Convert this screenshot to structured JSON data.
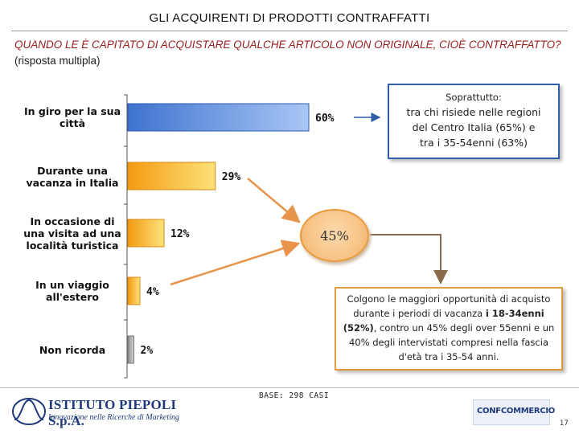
{
  "header": {
    "title": "GLI ACQUIRENTI DI PRODOTTI CONTRAFFATTI",
    "question_main": "QUANDO LE È CAPITATO DI ACQUISTARE QUALCHE ARTICOLO NON ORIGINALE, CIOÈ CONTRAFFATTO?",
    "question_note": " (risposta multipla)"
  },
  "chart_data": {
    "type": "bar",
    "orientation": "horizontal",
    "categories": [
      [
        "In giro per la sua",
        "città"
      ],
      [
        "Durante una",
        "vacanza in Italia"
      ],
      [
        "In occasione di",
        "una visita ad una",
        "località turistica"
      ],
      [
        "In un viaggio",
        "all'estero"
      ],
      [
        "Non ricorda"
      ]
    ],
    "values": [
      60,
      29,
      12,
      4,
      2
    ],
    "value_labels": [
      "60%",
      "29%",
      "12%",
      "4%",
      "2%"
    ],
    "xlim": [
      0,
      100
    ],
    "colors": [
      "#6a9be8",
      "#f5a623",
      "#f5a623",
      "#f5a623",
      "#a9a9a9"
    ],
    "grid": false
  },
  "callout": {
    "heading": "Soprattutto:",
    "lines": [
      "tra chi risiede nelle regioni",
      "del Centro Italia (65%) e",
      "tra i 35-54enni (63%)"
    ]
  },
  "bubble": {
    "value": "45%"
  },
  "note": {
    "part1": "Colgono le maggiori opportunità di acquisto durante i periodi di vacanza ",
    "bold1": "i 18-34enni (52%)",
    "part2": ", contro un 45% degli over 55enni e un 40% degli intervistati compresi nella fascia d'età tra i 35-54 anni."
  },
  "footer": {
    "base": "BASE: 298 CASI",
    "logo_left_name": "ISTITUTO PIEPOLI S.p.A.",
    "logo_left_sub": "Innovazione nelle Ricerche di Marketing",
    "logo_right": "CONFCOMMERCIO",
    "page": "17"
  }
}
